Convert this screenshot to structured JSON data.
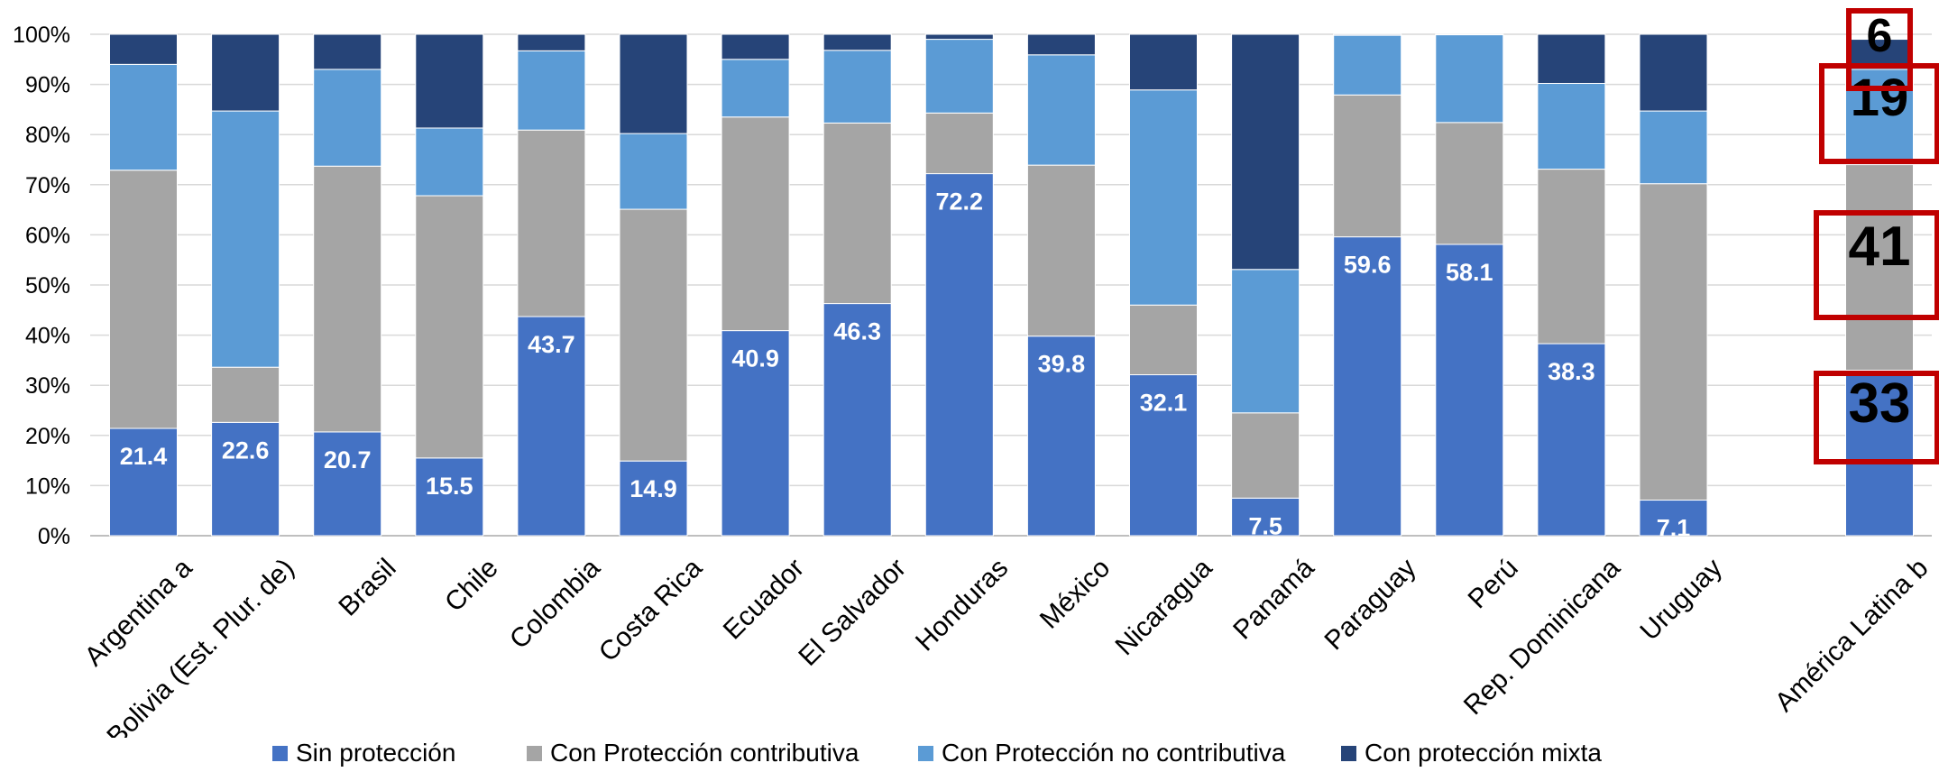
{
  "chart_data": {
    "type": "bar",
    "stacked": true,
    "percent_axis": true,
    "ylim": [
      0,
      100
    ],
    "y_ticks": [
      "0%",
      "10%",
      "20%",
      "30%",
      "40%",
      "50%",
      "60%",
      "70%",
      "80%",
      "90%",
      "100%"
    ],
    "grid": true,
    "legend_position": "bottom",
    "categories": [
      "Argentina a",
      "Bolivia (Est. Plur. de)",
      "Brasil",
      "Chile",
      "Colombia",
      "Costa Rica",
      "Ecuador",
      "El Salvador",
      "Honduras",
      "México",
      "Nicaragua",
      "Panamá",
      "Paraguay",
      "Perú",
      "Rep. Dominicana",
      "Uruguay",
      "América Latina b"
    ],
    "series": [
      {
        "name": "Sin protección",
        "color": "#4472C4",
        "values": [
          21.4,
          22.6,
          20.7,
          15.5,
          43.7,
          14.9,
          40.9,
          46.3,
          72.2,
          39.8,
          32.1,
          7.5,
          59.6,
          58.1,
          38.3,
          7.1,
          33
        ],
        "labels": [
          "21.4",
          "22.6",
          "20.7",
          "15.5",
          "43.7",
          "14.9",
          "40.9",
          "46.3",
          "72.2",
          "39.8",
          "32.1",
          "7.5",
          "59.6",
          "58.1",
          "38.3",
          "7.1",
          ""
        ]
      },
      {
        "name": "Con Protección contributiva",
        "color": "#A5A5A5",
        "values": [
          51.5,
          11.0,
          53.0,
          52.3,
          37.2,
          50.2,
          42.6,
          36.0,
          12.1,
          34.1,
          13.9,
          17.0,
          28.3,
          24.3,
          34.8,
          63.1,
          41
        ]
      },
      {
        "name": "Con Protección no contributiva",
        "color": "#5B9BD5",
        "values": [
          21.1,
          51.1,
          19.3,
          13.5,
          15.8,
          15.1,
          11.5,
          14.5,
          14.7,
          22.0,
          42.9,
          28.6,
          11.9,
          17.5,
          17.1,
          14.5,
          19
        ]
      },
      {
        "name": "Con protección mixta",
        "color": "#264478",
        "values": [
          6.0,
          15.3,
          7.0,
          18.7,
          3.3,
          19.8,
          5.0,
          3.2,
          1.0,
          4.1,
          11.1,
          46.9,
          0.2,
          0.1,
          9.8,
          15.3,
          6
        ]
      }
    ],
    "callouts": [
      "33",
      "41",
      "19",
      "6"
    ]
  }
}
